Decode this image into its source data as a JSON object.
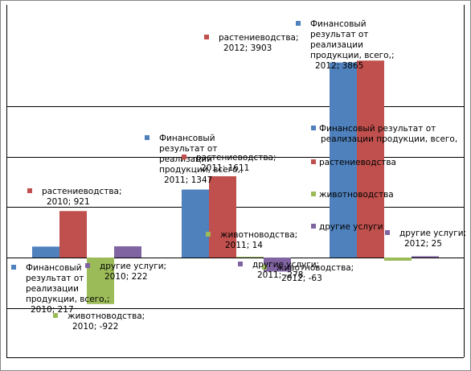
{
  "chart_data": {
    "type": "bar",
    "title": "",
    "xlabel": "",
    "ylabel": "",
    "categories": [
      "2010",
      "2011",
      "2012"
    ],
    "ylim": [
      -1500,
      5000
    ],
    "series": [
      {
        "name": "Финансовый результат от реализации продукции, всего,",
        "short": "Финансовый результат от реализации продукции, всего,",
        "color": "#4F81BD",
        "values": [
          217,
          1347,
          3865
        ],
        "labels": [
          [
            "Финансовый",
            "результат от",
            "реализации",
            "продукции, всего,;",
            "2010; 217"
          ],
          [
            "Финансовый",
            "результат от",
            "реализации",
            "продукции, всего,;",
            "2011; 1347"
          ],
          [
            "Финансовый",
            "результат от",
            "реализации",
            "продукции, всего,;",
            "2012; 3865"
          ]
        ]
      },
      {
        "name": "растениеводства",
        "color": "#C0504D",
        "values": [
          921,
          1611,
          3903
        ],
        "labels": [
          [
            "растениеводства;",
            "2010; 921"
          ],
          [
            "растениеводства;",
            "2011; 1611"
          ],
          [
            "растениеводства;",
            "2012; 3903"
          ]
        ]
      },
      {
        "name": "животноводства",
        "color": "#9BBB59",
        "values": [
          -922,
          14,
          -63
        ],
        "labels": [
          [
            "животноводства;",
            "2010; -922"
          ],
          [
            "животноводства;",
            "2011; 14"
          ],
          [
            "животноводства;",
            "2012; -63"
          ]
        ]
      },
      {
        "name": "другие услуги",
        "color": "#8064A2",
        "values": [
          222,
          -278,
          25
        ],
        "labels": [
          [
            "другие услуги;",
            "2010; 222"
          ],
          [
            "другие услуги;",
            "2011; -278"
          ],
          [
            "другие услуги;",
            "2012; 25"
          ]
        ]
      }
    ],
    "legend": {
      "position": "right",
      "items": [
        [
          "Финансовый результат от",
          "реализации продукции, всего,"
        ],
        [
          "растениеводства"
        ],
        [
          "животноводства"
        ],
        [
          "другие услуги"
        ]
      ]
    }
  }
}
